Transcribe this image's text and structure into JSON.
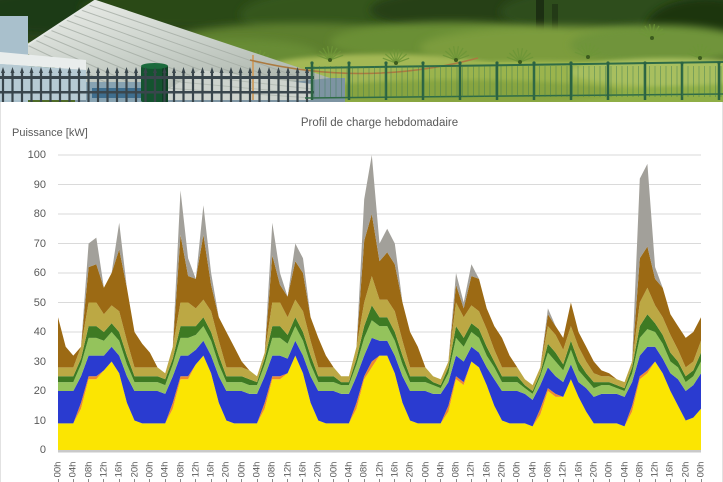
{
  "chart_data": {
    "type": "area",
    "stacked": true,
    "title": "Profil de charge hebdomadaire",
    "ylabel": "Puissance [kW]",
    "xlabel": "",
    "ylim": [
      0,
      100
    ],
    "y_ticks": [
      0,
      10,
      20,
      30,
      40,
      50,
      60,
      70,
      80,
      90,
      100
    ],
    "x_unit": "hour-of-week",
    "x_start": 0,
    "x_end": 168,
    "x_step": 2,
    "x_tick_interval": 4,
    "grid": true,
    "legend": "none",
    "x_tick_labels": [
      "00h",
      "04h",
      "08h",
      "12h",
      "16h",
      "20h",
      "00h",
      "04h",
      "08h",
      "12h",
      "16h",
      "20h",
      "00h",
      "04h",
      "08h",
      "12h",
      "16h",
      "20h",
      "00h",
      "04h",
      "08h",
      "12h",
      "16h",
      "20h",
      "00h",
      "04h",
      "08h",
      "12h",
      "16h",
      "20h",
      "00h",
      "04h",
      "08h",
      "12h",
      "16h",
      "20h",
      "00h",
      "04h",
      "08h",
      "12h",
      "16h",
      "20h",
      "00h"
    ],
    "series": [
      {
        "name": "yellow",
        "color": "#FBE502",
        "values": [
          9,
          9,
          9,
          14,
          24,
          24,
          27,
          30,
          26,
          16,
          10,
          9,
          9,
          9,
          9,
          14,
          24,
          24,
          29,
          32,
          26,
          16,
          10,
          9,
          9,
          9,
          9,
          14,
          24,
          24,
          26,
          32,
          26,
          16,
          10,
          9,
          9,
          9,
          9,
          14,
          24,
          28,
          32,
          32,
          26,
          16,
          10,
          9,
          9,
          9,
          9,
          13,
          24,
          22,
          30,
          28,
          22,
          15,
          10,
          9,
          9,
          9,
          8,
          12,
          20,
          18,
          18,
          24,
          18,
          13,
          9,
          9,
          9,
          9,
          8,
          13,
          24,
          26,
          30,
          26,
          20,
          15,
          10,
          11,
          14
        ]
      },
      {
        "name": "orange",
        "color": "#EE8A2E",
        "values": [
          0,
          0,
          0,
          2,
          1,
          1,
          0,
          0,
          0,
          0,
          0,
          0,
          0,
          0,
          0,
          2,
          1,
          1,
          0,
          0,
          0,
          0,
          0,
          0,
          0,
          0,
          0,
          2,
          1,
          1,
          0,
          0,
          0,
          0,
          0,
          0,
          0,
          0,
          0,
          2,
          1,
          2,
          0,
          0,
          0,
          0,
          0,
          0,
          0,
          0,
          0,
          2,
          1,
          1,
          0,
          0,
          0,
          0,
          0,
          0,
          0,
          0,
          0,
          2,
          1,
          1,
          0,
          0,
          0,
          0,
          0,
          0,
          0,
          0,
          0,
          2,
          1,
          1,
          0,
          0,
          0,
          0,
          0,
          0,
          0
        ]
      },
      {
        "name": "blue",
        "color": "#2A3BD0",
        "values": [
          11,
          11,
          11,
          9,
          7,
          7,
          5,
          5,
          6,
          9,
          10,
          11,
          11,
          11,
          10,
          9,
          7,
          7,
          5,
          5,
          6,
          9,
          10,
          11,
          11,
          10,
          10,
          9,
          7,
          7,
          5,
          5,
          6,
          9,
          10,
          11,
          11,
          10,
          10,
          9,
          7,
          8,
          5,
          5,
          6,
          9,
          10,
          11,
          11,
          10,
          10,
          8,
          7,
          7,
          5,
          5,
          6,
          9,
          10,
          11,
          11,
          10,
          9,
          8,
          7,
          6,
          5,
          5,
          5,
          8,
          9,
          10,
          10,
          10,
          10,
          8,
          7,
          8,
          5,
          5,
          6,
          9,
          10,
          11,
          12
        ]
      },
      {
        "name": "light-green",
        "color": "#94C35C",
        "values": [
          3,
          3,
          3,
          4,
          6,
          6,
          5,
          5,
          5,
          4,
          3,
          3,
          3,
          3,
          3,
          4,
          6,
          6,
          5,
          5,
          5,
          4,
          3,
          3,
          3,
          3,
          3,
          4,
          6,
          6,
          5,
          5,
          5,
          4,
          3,
          3,
          3,
          3,
          3,
          4,
          6,
          6,
          5,
          5,
          5,
          4,
          3,
          3,
          3,
          3,
          2,
          3,
          6,
          5,
          5,
          5,
          4,
          4,
          3,
          3,
          3,
          2,
          2,
          3,
          5,
          5,
          4,
          5,
          4,
          3,
          3,
          3,
          3,
          2,
          2,
          3,
          6,
          6,
          5,
          5,
          4,
          4,
          3,
          3,
          4
        ]
      },
      {
        "name": "dark-green",
        "color": "#3E7A23",
        "values": [
          2,
          2,
          2,
          2,
          4,
          4,
          3,
          3,
          3,
          3,
          2,
          2,
          2,
          2,
          2,
          2,
          4,
          4,
          3,
          3,
          3,
          3,
          2,
          2,
          2,
          2,
          1,
          2,
          4,
          4,
          3,
          3,
          3,
          3,
          2,
          2,
          2,
          1,
          1,
          2,
          4,
          5,
          3,
          3,
          3,
          3,
          2,
          2,
          2,
          1,
          1,
          2,
          4,
          3,
          3,
          3,
          3,
          2,
          2,
          2,
          2,
          1,
          1,
          1,
          3,
          3,
          2,
          3,
          3,
          2,
          2,
          1,
          1,
          1,
          1,
          2,
          4,
          5,
          3,
          3,
          3,
          2,
          2,
          2,
          3
        ]
      },
      {
        "name": "olive",
        "color": "#BCA844",
        "values": [
          3,
          3,
          3,
          4,
          8,
          8,
          6,
          6,
          7,
          5,
          3,
          3,
          3,
          3,
          2,
          4,
          8,
          8,
          6,
          6,
          7,
          5,
          3,
          3,
          3,
          3,
          2,
          2,
          8,
          8,
          6,
          6,
          7,
          5,
          3,
          3,
          3,
          2,
          2,
          4,
          8,
          10,
          6,
          6,
          7,
          5,
          3,
          3,
          3,
          2,
          2,
          2,
          8,
          7,
          6,
          6,
          6,
          4,
          3,
          3,
          3,
          2,
          2,
          2,
          6,
          6,
          5,
          5,
          5,
          4,
          3,
          2,
          2,
          2,
          2,
          2,
          8,
          9,
          6,
          6,
          6,
          4,
          3,
          3,
          4
        ]
      },
      {
        "name": "brown",
        "color": "#9C6A14",
        "values": [
          17,
          7,
          4,
          0,
          12,
          13,
          9,
          11,
          21,
          18,
          12,
          8,
          5,
          0,
          0,
          0,
          23,
          9,
          10,
          22,
          9,
          8,
          12,
          7,
          2,
          0,
          0,
          0,
          16,
          6,
          7,
          13,
          13,
          8,
          10,
          4,
          0,
          0,
          0,
          0,
          21,
          21,
          13,
          16,
          16,
          13,
          12,
          7,
          0,
          0,
          0,
          0,
          6,
          3,
          10,
          11,
          7,
          8,
          10,
          4,
          0,
          0,
          0,
          0,
          4,
          3,
          4,
          8,
          5,
          5,
          4,
          2,
          1,
          0,
          0,
          0,
          15,
          14,
          9,
          10,
          7,
          8,
          10,
          10,
          8
        ]
      },
      {
        "name": "gray",
        "color": "#A2A09A",
        "values": [
          0,
          0,
          0,
          0,
          8,
          9,
          0,
          0,
          9,
          0,
          0,
          0,
          0,
          0,
          0,
          0,
          15,
          6,
          0,
          10,
          4,
          0,
          0,
          0,
          0,
          0,
          0,
          0,
          11,
          4,
          0,
          6,
          5,
          0,
          0,
          0,
          0,
          0,
          0,
          0,
          14,
          20,
          6,
          8,
          7,
          0,
          0,
          0,
          0,
          0,
          0,
          0,
          4,
          2,
          4,
          0,
          0,
          0,
          0,
          0,
          0,
          0,
          0,
          0,
          2,
          0,
          0,
          0,
          0,
          0,
          0,
          0,
          0,
          0,
          0,
          0,
          27,
          28,
          4,
          0,
          0,
          0,
          0,
          0,
          0
        ]
      }
    ]
  },
  "styles": {
    "title_color": "#595959",
    "tick_color": "#595959",
    "grid_color": "#DADADA",
    "axis_color": "#C9C9C9",
    "background": "#FFFFFF"
  }
}
